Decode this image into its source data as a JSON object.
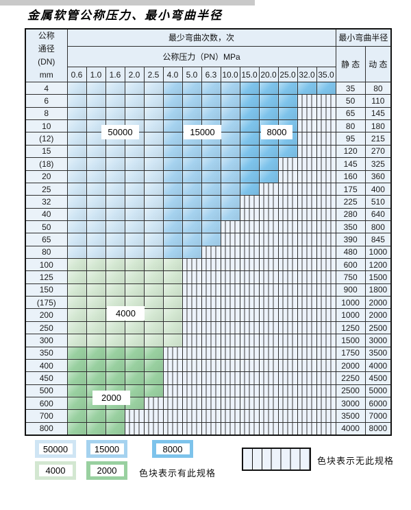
{
  "title": "金属软管公称压力、最小弯曲半径",
  "table": {
    "corner": {
      "line1": "公称",
      "line2": "通径",
      "line3": "(DN)",
      "line4": "mm"
    },
    "bend_cycles_header": "最少弯曲次数，次",
    "pressure_header": "公称压力（PN）MPa",
    "radius_header": "最小弯曲半径",
    "static_label": "静 态",
    "dynamic_label": "动 态",
    "pressure_cols": [
      "0.6",
      "1.0",
      "1.6",
      "2.0",
      "2.5",
      "4.0",
      "5.0",
      "6.3",
      "10.0",
      "15.0",
      "20.0",
      "25.0",
      "32.0",
      "35.0"
    ],
    "blue_shades": {
      "cycles_50000_through_col": 5,
      "cycles_15000_through_col": 9
    },
    "rows": [
      {
        "dn": "4",
        "colored": 14,
        "palette": "blue",
        "static": "35",
        "dynamic": "80"
      },
      {
        "dn": "6",
        "colored": 12,
        "palette": "blue",
        "static": "50",
        "dynamic": "110"
      },
      {
        "dn": "8",
        "colored": 12,
        "palette": "blue",
        "static": "65",
        "dynamic": "145"
      },
      {
        "dn": "10",
        "colored": 12,
        "palette": "blue",
        "static": "80",
        "dynamic": "180"
      },
      {
        "dn": "(12)",
        "colored": 12,
        "palette": "blue",
        "static": "95",
        "dynamic": "215"
      },
      {
        "dn": "15",
        "colored": 12,
        "palette": "blue",
        "static": "120",
        "dynamic": "270"
      },
      {
        "dn": "(18)",
        "colored": 11,
        "palette": "blue",
        "static": "145",
        "dynamic": "325"
      },
      {
        "dn": "20",
        "colored": 11,
        "palette": "blue",
        "static": "160",
        "dynamic": "360"
      },
      {
        "dn": "25",
        "colored": 10,
        "palette": "blue",
        "static": "175",
        "dynamic": "400"
      },
      {
        "dn": "32",
        "colored": 9,
        "palette": "blue",
        "static": "225",
        "dynamic": "510"
      },
      {
        "dn": "40",
        "colored": 9,
        "palette": "blue",
        "static": "280",
        "dynamic": "640"
      },
      {
        "dn": "50",
        "colored": 8,
        "palette": "blue",
        "static": "350",
        "dynamic": "800"
      },
      {
        "dn": "65",
        "colored": 8,
        "palette": "blue",
        "static": "390",
        "dynamic": "845"
      },
      {
        "dn": "80",
        "colored": 7,
        "palette": "blue",
        "static": "480",
        "dynamic": "1000"
      },
      {
        "dn": "100",
        "colored": 6,
        "palette": "g4",
        "static": "600",
        "dynamic": "1200"
      },
      {
        "dn": "125",
        "colored": 6,
        "palette": "g4",
        "static": "750",
        "dynamic": "1500"
      },
      {
        "dn": "150",
        "colored": 6,
        "palette": "g4",
        "static": "900",
        "dynamic": "1800"
      },
      {
        "dn": "(175)",
        "colored": 6,
        "palette": "g4",
        "static": "1000",
        "dynamic": "2000"
      },
      {
        "dn": "200",
        "colored": 6,
        "palette": "g4",
        "static": "1000",
        "dynamic": "2000"
      },
      {
        "dn": "250",
        "colored": 6,
        "palette": "g4",
        "static": "1250",
        "dynamic": "2500"
      },
      {
        "dn": "300",
        "colored": 6,
        "palette": "g4",
        "static": "1500",
        "dynamic": "3000"
      },
      {
        "dn": "350",
        "colored": 5,
        "palette": "g2",
        "static": "1750",
        "dynamic": "3500"
      },
      {
        "dn": "400",
        "colored": 5,
        "palette": "g2",
        "static": "2000",
        "dynamic": "4000"
      },
      {
        "dn": "450",
        "colored": 5,
        "palette": "g2",
        "static": "2250",
        "dynamic": "4500"
      },
      {
        "dn": "500",
        "colored": 5,
        "palette": "g2",
        "static": "2500",
        "dynamic": "5000"
      },
      {
        "dn": "600",
        "colored": 4,
        "palette": "g2",
        "static": "3000",
        "dynamic": "6000"
      },
      {
        "dn": "700",
        "colored": 3,
        "palette": "g2",
        "static": "3500",
        "dynamic": "7000"
      },
      {
        "dn": "800",
        "colored": 3,
        "palette": "g2",
        "static": "4000",
        "dynamic": "8000"
      }
    ]
  },
  "overlays": {
    "cycles_50000": "50000",
    "cycles_15000": "15000",
    "cycles_8000": "8000",
    "cycles_4000": "4000",
    "cycles_2000": "2000"
  },
  "legend": {
    "swatch_50000": "50000",
    "swatch_15000": "15000",
    "swatch_8000": "8000",
    "swatch_4000": "4000",
    "swatch_2000": "2000",
    "has_spec_text": "色块表示有此规格",
    "no_spec_text": "色块表示无此规格"
  },
  "colors": {
    "blue50000": "#cfe5f4",
    "blue15000": "#a5d2ef",
    "blue8000": "#7dc3eb",
    "green4000": "#d3e7d1",
    "green2000": "#99d0a0",
    "hatchBg": "#edf3fb",
    "headerBg": "#e4eef7",
    "cellBg": "#eaf2f9",
    "grid": "#2e2e2e"
  }
}
